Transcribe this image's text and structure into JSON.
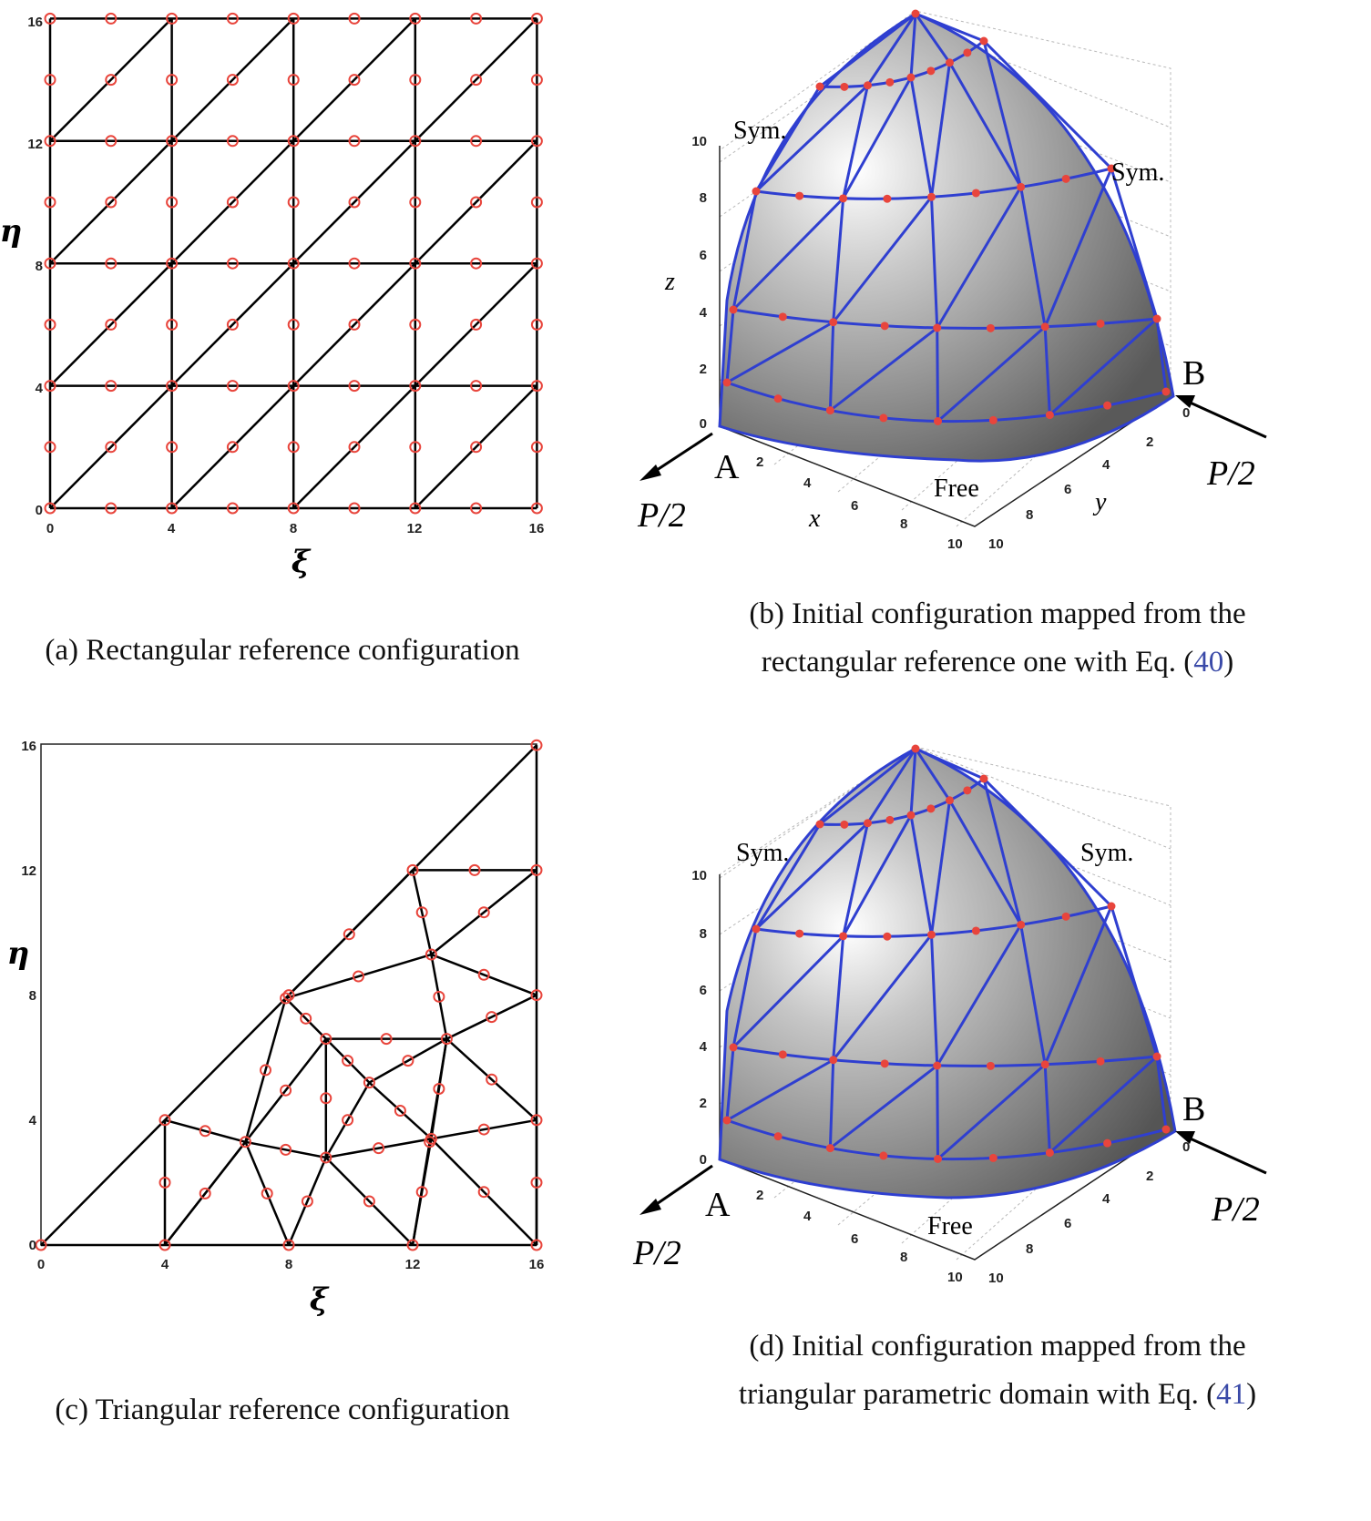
{
  "panel_a": {
    "caption": "(a) Rectangular reference configuration",
    "xlabel": "ξ",
    "ylabel": "η",
    "xticks": [
      "0",
      "4",
      "8",
      "12",
      "16"
    ],
    "yticks": [
      "0",
      "4",
      "8",
      "12",
      "16"
    ]
  },
  "panel_b": {
    "caption_line1": "(b) Initial configuration mapped from the",
    "caption_line2_pre": "rectangular reference one with Eq. (",
    "caption_ref": "40",
    "caption_close": ")",
    "zlabel": "z",
    "xlabel": "x",
    "ylabel": "y",
    "label_sym_left": "Sym.",
    "label_sym_right": "Sym.",
    "label_free": "Free",
    "label_a": "A",
    "label_b": "B",
    "load_left": "P/2",
    "load_right": "P/2",
    "zticks": [
      "0",
      "2",
      "4",
      "6",
      "8",
      "10"
    ],
    "xticks": [
      "2",
      "4",
      "6",
      "8",
      "10"
    ],
    "yticks": [
      "0",
      "2",
      "4",
      "6",
      "8",
      "10"
    ]
  },
  "panel_c": {
    "caption": "(c) Triangular reference configuration",
    "xlabel": "ξ",
    "ylabel": "η",
    "xticks": [
      "0",
      "4",
      "8",
      "12",
      "16"
    ],
    "yticks": [
      "0",
      "4",
      "8",
      "12",
      "16"
    ]
  },
  "panel_d": {
    "caption_line1": "(d) Initial configuration mapped from the",
    "caption_line2_pre": "triangular parametric domain with Eq. (",
    "caption_ref": "41",
    "caption_close": ")",
    "label_sym_left": "Sym.",
    "label_sym_right": "Sym.",
    "label_free": "Free",
    "label_a": "A",
    "label_b": "B",
    "load_left": "P/2",
    "load_right": "P/2",
    "zticks": [
      "0",
      "2",
      "4",
      "6",
      "8",
      "10"
    ],
    "xticks": [
      "2",
      "4",
      "6",
      "8",
      "10"
    ],
    "yticks": [
      "0",
      "2",
      "4",
      "6",
      "8",
      "10"
    ]
  },
  "colors": {
    "node": "#e8453c",
    "edge": "#000000",
    "mesh3d": "#2f3fd0",
    "ref": "#3a4aa8"
  }
}
